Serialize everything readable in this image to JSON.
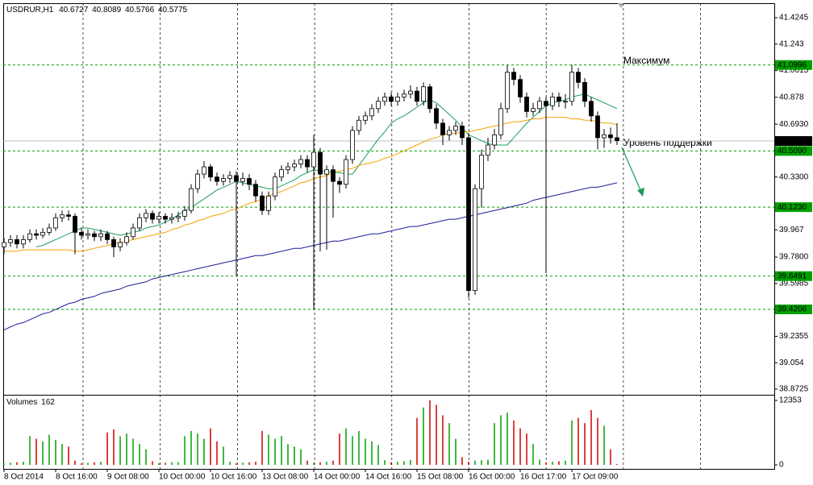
{
  "chart_data": {
    "type": "candlestick",
    "title": "USDRUR,H1",
    "header_prices": [
      40.6727,
      40.8089,
      40.5766,
      40.5775
    ],
    "annotations": [
      "Максимум",
      "Уровень поддержки"
    ],
    "time_labels": [
      "8 Oct 2014",
      "8 Oct 16:00",
      "9 Oct 08:00",
      "10 Oct 00:00",
      "10 Oct 16:00",
      "13 Oct 08:00",
      "14 Oct 00:00",
      "14 Oct 16:00",
      "15 Oct 08:00",
      "16 Oct 00:00",
      "16 Oct 17:00",
      "17 Oct 09:00"
    ],
    "ylim": [
      38.834,
      41.524
    ],
    "yticks": [
      41.4245,
      41.243,
      41.0615,
      40.878,
      {
        "value": 40.693,
        "label": "40.6930"
      },
      {
        "value": 40.33,
        "label": "40.3300"
      },
      39.967,
      {
        "value": 39.78,
        "label": "39.7800"
      },
      39.5985,
      39.2355,
      39.054,
      38.8725
    ],
    "levels": [
      41.0996,
      {
        "value": 40.509,
        "label": "40.5090"
      },
      {
        "value": 40.123,
        "label": "40.1230"
      },
      39.6491,
      39.4206
    ],
    "level_color": "#00a000",
    "current_price": 40.5775,
    "up_color": "#ffffff",
    "down_color": "#000000",
    "volume_up_color": "#00a000",
    "volume_down_color": "#d00000",
    "open": [
      39.85,
      39.88,
      39.9,
      39.87,
      39.9,
      39.94,
      39.93,
      39.95,
      39.98,
      40.05,
      40.07,
      40.06,
      39.95,
      39.93,
      39.94,
      39.92,
      39.94,
      39.9,
      39.85,
      39.88,
      39.92,
      39.98,
      40.05,
      40.08,
      40.04,
      40.06,
      40.04,
      40.05,
      40.06,
      40.1,
      40.25,
      40.35,
      40.4,
      40.33,
      40.3,
      40.32,
      40.34,
      40.3,
      40.32,
      40.28,
      40.2,
      40.1,
      40.2,
      40.33,
      40.38,
      40.4,
      40.42,
      40.45,
      40.4,
      40.5,
      40.35,
      40.38,
      40.3,
      40.28,
      40.45,
      40.65,
      40.72,
      40.75,
      40.8,
      40.85,
      40.88,
      40.85,
      40.88,
      40.9,
      40.92,
      40.85,
      40.95,
      40.8,
      40.7,
      40.62,
      40.65,
      40.68,
      40.6,
      39.55,
      40.25,
      40.48,
      40.55,
      40.62,
      40.8,
      41.05,
      41.0,
      40.88,
      40.78,
      40.8,
      40.85,
      40.82,
      40.88,
      40.85,
      40.85,
      41.05,
      40.98,
      40.85,
      40.75,
      40.6,
      40.62,
      40.6
    ],
    "high": [
      39.91,
      39.93,
      39.93,
      39.93,
      39.97,
      39.97,
      39.98,
      40.01,
      40.08,
      40.1,
      40.1,
      40.08,
      39.98,
      39.97,
      39.96,
      39.97,
      39.96,
      39.92,
      39.91,
      39.95,
      40.01,
      40.08,
      40.11,
      40.1,
      40.09,
      40.08,
      40.08,
      40.09,
      40.13,
      40.28,
      40.38,
      40.44,
      40.42,
      40.36,
      40.35,
      40.37,
      40.37,
      40.36,
      40.35,
      40.31,
      40.23,
      40.23,
      40.36,
      40.41,
      40.43,
      40.45,
      40.48,
      40.48,
      40.62,
      40.53,
      40.41,
      40.41,
      40.33,
      40.48,
      40.68,
      40.75,
      40.78,
      40.83,
      40.88,
      40.91,
      40.91,
      40.91,
      40.93,
      40.96,
      40.95,
      40.98,
      40.97,
      40.83,
      40.73,
      40.68,
      40.71,
      40.71,
      40.63,
      40.28,
      40.52,
      40.6,
      40.66,
      40.84,
      41.1,
      41.08,
      41.03,
      40.91,
      40.84,
      40.88,
      40.88,
      40.91,
      40.91,
      40.9,
      41.1,
      41.08,
      41.01,
      40.88,
      40.78,
      40.66,
      40.67,
      40.7
    ],
    "low": [
      39.8,
      39.85,
      39.84,
      39.84,
      39.88,
      39.9,
      39.91,
      39.93,
      39.96,
      40.02,
      40.03,
      39.8,
      39.9,
      39.9,
      39.89,
      39.89,
      39.87,
      39.78,
      39.82,
      39.86,
      39.9,
      39.96,
      40.02,
      40.01,
      40.01,
      40.01,
      40.01,
      40.02,
      40.03,
      40.08,
      40.22,
      40.32,
      40.3,
      40.27,
      40.27,
      40.29,
      39.65,
      40.27,
      40.24,
      40.16,
      40.07,
      40.07,
      40.17,
      40.3,
      40.35,
      40.37,
      40.39,
      40.36,
      39.42,
      39.82,
      39.83,
      40.05,
      40.22,
      40.25,
      40.42,
      40.62,
      40.69,
      40.72,
      40.77,
      40.82,
      40.82,
      40.82,
      40.85,
      40.87,
      40.82,
      40.82,
      40.77,
      40.66,
      40.55,
      40.58,
      40.62,
      40.55,
      39.5,
      39.52,
      40.12,
      40.44,
      40.52,
      40.59,
      40.77,
      40.96,
      40.84,
      40.74,
      40.75,
      40.77,
      39.67,
      40.79,
      40.81,
      40.8,
      40.82,
      40.94,
      40.81,
      40.71,
      40.52,
      40.53,
      40.56,
      40.55
    ],
    "close": [
      39.88,
      39.9,
      39.87,
      39.9,
      39.94,
      39.93,
      39.95,
      39.98,
      40.05,
      40.07,
      40.06,
      39.95,
      39.93,
      39.94,
      39.92,
      39.94,
      39.9,
      39.85,
      39.88,
      39.92,
      39.98,
      40.05,
      40.08,
      40.04,
      40.06,
      40.04,
      40.05,
      40.06,
      40.1,
      40.25,
      40.35,
      40.4,
      40.33,
      40.3,
      40.32,
      40.34,
      40.3,
      40.32,
      40.28,
      40.2,
      40.1,
      40.2,
      40.33,
      40.38,
      40.4,
      40.42,
      40.45,
      40.4,
      40.5,
      40.35,
      40.38,
      40.3,
      40.28,
      40.45,
      40.65,
      40.72,
      40.75,
      40.8,
      40.85,
      40.88,
      40.85,
      40.88,
      40.9,
      40.92,
      40.85,
      40.95,
      40.8,
      40.7,
      40.62,
      40.65,
      40.68,
      40.6,
      39.55,
      40.25,
      40.48,
      40.55,
      40.62,
      40.8,
      41.05,
      41.0,
      40.88,
      40.78,
      40.8,
      40.85,
      40.82,
      40.88,
      40.85,
      40.85,
      41.05,
      40.98,
      40.85,
      40.75,
      40.6,
      40.62,
      40.6,
      40.58
    ],
    "moving_averages": [
      {
        "color": "#1aa05a",
        "values": [
          null,
          null,
          null,
          null,
          null,
          39.85,
          39.86,
          39.88,
          39.9,
          39.92,
          39.94,
          39.96,
          39.98,
          39.98,
          39.97,
          39.96,
          39.95,
          39.94,
          39.93,
          39.94,
          39.95,
          39.96,
          39.98,
          39.99,
          40.0,
          40.02,
          40.04,
          40.07,
          40.1,
          40.12,
          40.15,
          40.18,
          40.21,
          40.24,
          40.26,
          40.28,
          40.3,
          40.29,
          40.28,
          40.27,
          40.26,
          40.25,
          40.25,
          40.27,
          40.29,
          40.31,
          40.34,
          40.36,
          40.38,
          40.37,
          40.37,
          40.36,
          40.36,
          40.35,
          40.35,
          40.41,
          40.47,
          40.53,
          40.59,
          40.64,
          40.7,
          40.73,
          40.75,
          40.78,
          40.81,
          40.84,
          40.86,
          40.84,
          40.8,
          40.76,
          40.72,
          40.67,
          40.62,
          40.6,
          40.58,
          40.56,
          40.55,
          40.55,
          40.55,
          40.6,
          40.65,
          40.7,
          40.74,
          40.78,
          40.82,
          40.84,
          40.85,
          40.86,
          40.88,
          40.89,
          40.9,
          40.88,
          40.86,
          40.84,
          40.82,
          40.8
        ]
      },
      {
        "color": "#f5a000",
        "values": [
          39.82,
          39.82,
          39.82,
          39.83,
          39.83,
          39.83,
          39.83,
          39.83,
          39.83,
          39.83,
          39.83,
          39.82,
          39.82,
          39.83,
          39.84,
          39.85,
          39.86,
          39.87,
          39.88,
          39.89,
          39.9,
          39.91,
          39.92,
          39.93,
          39.94,
          39.95,
          39.97,
          39.98,
          40.0,
          40.01,
          40.03,
          40.04,
          40.06,
          40.07,
          40.08,
          40.1,
          40.11,
          40.13,
          40.15,
          40.16,
          40.18,
          40.2,
          40.22,
          40.23,
          40.25,
          40.27,
          40.29,
          40.3,
          40.32,
          40.33,
          40.34,
          40.36,
          40.37,
          40.38,
          40.39,
          40.41,
          40.42,
          40.43,
          40.44,
          40.46,
          40.47,
          40.49,
          40.51,
          40.53,
          40.55,
          40.57,
          40.59,
          40.6,
          40.62,
          40.63,
          40.63,
          40.64,
          40.64,
          40.65,
          40.66,
          40.67,
          40.68,
          40.69,
          40.7,
          40.71,
          40.71,
          40.72,
          40.73,
          40.73,
          40.74,
          40.74,
          40.74,
          40.74,
          40.73,
          40.73,
          40.72,
          40.72,
          40.71,
          40.7,
          40.7,
          40.69
        ]
      },
      {
        "color": "#1a1a9c",
        "values": [
          39.28,
          39.3,
          39.32,
          39.33,
          39.35,
          39.37,
          39.39,
          39.4,
          39.42,
          39.44,
          39.46,
          39.47,
          39.49,
          39.5,
          39.51,
          39.53,
          39.54,
          39.55,
          39.56,
          39.58,
          39.59,
          39.6,
          39.61,
          39.63,
          39.64,
          39.65,
          39.66,
          39.67,
          39.68,
          39.69,
          39.7,
          39.71,
          39.72,
          39.73,
          39.74,
          39.75,
          39.76,
          39.77,
          39.78,
          39.79,
          39.79,
          39.8,
          39.81,
          39.82,
          39.83,
          39.84,
          39.84,
          39.85,
          39.86,
          39.87,
          39.88,
          39.89,
          39.89,
          39.9,
          39.91,
          39.92,
          39.93,
          39.94,
          39.94,
          39.95,
          39.96,
          39.97,
          39.98,
          39.99,
          39.99,
          40.0,
          40.01,
          40.02,
          40.03,
          40.04,
          40.04,
          40.05,
          40.06,
          40.07,
          40.08,
          40.09,
          40.1,
          40.11,
          40.12,
          40.13,
          40.14,
          40.15,
          40.17,
          40.18,
          40.19,
          40.2,
          40.21,
          40.22,
          40.23,
          40.24,
          40.25,
          40.26,
          40.26,
          40.27,
          40.28,
          40.29
        ]
      }
    ],
    "volume_title": "Volumes",
    "volume_ylim": [
      0,
      12353
    ],
    "volume_yticks": [
      12353,
      0
    ],
    "volume": [
      300,
      400,
      500,
      600,
      5500,
      5000,
      4500,
      5800,
      4800,
      4000,
      3500,
      800,
      300,
      400,
      500,
      600,
      6200,
      6800,
      5500,
      6000,
      5000,
      4000,
      3000,
      700,
      300,
      400,
      500,
      500,
      5500,
      6500,
      6000,
      5000,
      7000,
      4500,
      3500,
      600,
      300,
      400,
      500,
      600,
      6500,
      5800,
      5000,
      5500,
      4000,
      3500,
      3000,
      800,
      400,
      500,
      600,
      800,
      6000,
      7000,
      5500,
      6500,
      5000,
      4500,
      3800,
      900,
      500,
      600,
      700,
      900,
      9000,
      11000,
      12353,
      11500,
      9500,
      8000,
      5000,
      1500,
      600,
      800,
      900,
      1000,
      8000,
      9500,
      10000,
      8500,
      7000,
      6000,
      4000,
      1000,
      500,
      600,
      700,
      800,
      8500,
      9000,
      8000,
      10500,
      9000,
      7500,
      3000,
      162
    ]
  }
}
